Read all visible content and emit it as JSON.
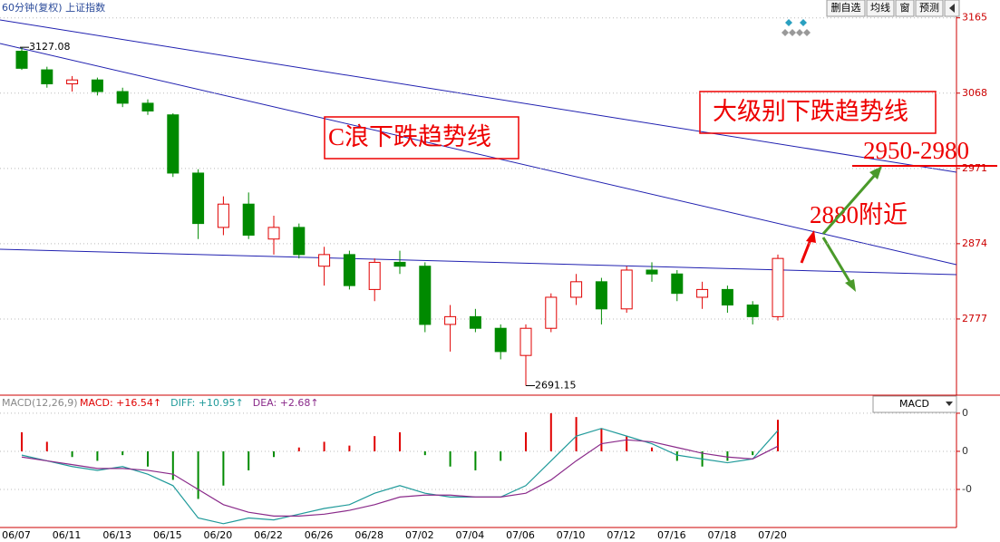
{
  "chart_data": {
    "type": "candlestick",
    "header": "60分钟(复权)  上证指数",
    "buttons": [
      "删自选",
      "均线",
      "窗",
      "预测"
    ],
    "categories": [
      "06/07",
      null,
      "06/11",
      null,
      "06/13",
      null,
      "06/15",
      null,
      "06/20",
      null,
      "06/22",
      null,
      "06/26",
      null,
      "06/28",
      null,
      "07/02",
      null,
      "07/04",
      null,
      "07/06",
      null,
      "07/10",
      null,
      "07/12",
      null,
      "07/16",
      null,
      "07/18",
      null,
      "07/20"
    ],
    "open": [
      3122,
      3098,
      3080,
      3085,
      3070,
      3055,
      3040,
      2965,
      2895,
      2925,
      2880,
      2895,
      2845,
      2860,
      2815,
      2850,
      2845,
      2770,
      2780,
      2765,
      2730,
      2765,
      2805,
      2825,
      2790,
      2840,
      2835,
      2805,
      2815,
      2795,
      2780
    ],
    "high": [
      3127.08,
      3102,
      3090,
      3088,
      3075,
      3060,
      3042,
      2970,
      2935,
      2940,
      2910,
      2900,
      2870,
      2865,
      2855,
      2865,
      2850,
      2795,
      2790,
      2770,
      2770,
      2810,
      2835,
      2830,
      2845,
      2850,
      2840,
      2825,
      2820,
      2800,
      2860
    ],
    "low": [
      3098,
      3075,
      3070,
      3065,
      3050,
      3040,
      2960,
      2880,
      2885,
      2880,
      2860,
      2855,
      2820,
      2815,
      2800,
      2835,
      2760,
      2735,
      2760,
      2725,
      2691.15,
      2760,
      2795,
      2770,
      2785,
      2825,
      2800,
      2790,
      2785,
      2770,
      2775
    ],
    "close": [
      3100,
      3080,
      3085,
      3070,
      3055,
      3045,
      2965,
      2900,
      2925,
      2885,
      2895,
      2860,
      2860,
      2820,
      2850,
      2845,
      2770,
      2780,
      2765,
      2735,
      2765,
      2805,
      2825,
      2790,
      2840,
      2835,
      2810,
      2815,
      2795,
      2780,
      2855
    ],
    "up_color": "#e00000",
    "down_color": "#008a00",
    "ylim": [
      2680,
      3188
    ],
    "yticks": [
      3165,
      3068,
      2971,
      2874,
      2777
    ],
    "grid": true,
    "annotations": [
      "C浪下跌趋势线",
      "大级别下跌趋势线",
      "2880附近",
      "2950-2980"
    ],
    "macd": {
      "title": "MACD(12,26,9)",
      "selector": "MACD",
      "ylim": [
        -40,
        29
      ],
      "yticks": [
        {
          "value": 20,
          "label": "0"
        },
        0,
        {
          "value": -20,
          "label": "-0"
        }
      ],
      "series": [
        {
          "name": "MACD: +16.54↑",
          "color": "#e00000",
          "kind": "bar",
          "values": [
            10,
            5,
            -3,
            -5,
            -2,
            -8,
            -15,
            -25,
            -18,
            -10,
            -3,
            2,
            5,
            3,
            8,
            10,
            -2,
            -8,
            -10,
            -5,
            10,
            20,
            18,
            12,
            8,
            2,
            -5,
            -8,
            -5,
            -2,
            16.54
          ]
        },
        {
          "name": "DIFF: +10.95↑",
          "color": "#1f9a9a",
          "kind": "line",
          "values": [
            -2,
            -5,
            -8,
            -10,
            -8,
            -12,
            -18,
            -35,
            -38,
            -35,
            -36,
            -33,
            -30,
            -28,
            -22,
            -18,
            -22,
            -24,
            -24,
            -24,
            -18,
            -5,
            8,
            12,
            8,
            4,
            -2,
            -4,
            -6,
            -4,
            10.95
          ]
        },
        {
          "name": "DEA: +2.68↑",
          "color": "#8a2a8a",
          "kind": "line",
          "values": [
            -3,
            -5,
            -7,
            -9,
            -9,
            -10,
            -12,
            -20,
            -28,
            -32,
            -34,
            -34,
            -33,
            -31,
            -28,
            -24,
            -23,
            -23,
            -24,
            -24,
            -22,
            -15,
            -5,
            4,
            6,
            5,
            2,
            -1,
            -3,
            -4,
            2.68
          ]
        }
      ]
    }
  }
}
